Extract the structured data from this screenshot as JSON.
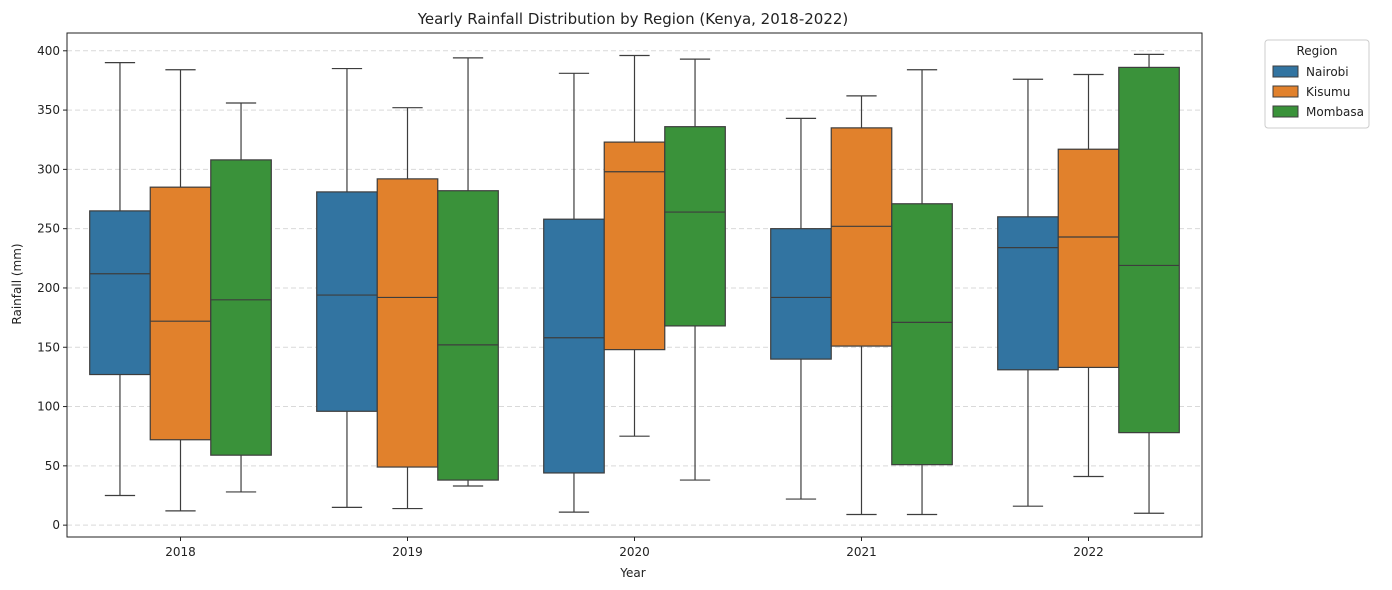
{
  "chart_data": {
    "type": "box",
    "title": "Yearly Rainfall Distribution by Region (Kenya, 2018-2022)",
    "xlabel": "Year",
    "ylabel": "Rainfall (mm)",
    "categories": [
      "2018",
      "2019",
      "2020",
      "2021",
      "2022"
    ],
    "ylim": [
      -10,
      415
    ],
    "yticks": [
      0,
      50,
      100,
      150,
      200,
      250,
      300,
      350,
      400
    ],
    "grid": true,
    "legend": {
      "title": "Region",
      "position": "outside-top-right"
    },
    "series": [
      {
        "name": "Nairobi",
        "color": "#3274a1",
        "boxes": [
          {
            "min": 25,
            "q1": 127,
            "median": 212,
            "q3": 265,
            "max": 390
          },
          {
            "min": 15,
            "q1": 96,
            "median": 194,
            "q3": 281,
            "max": 385
          },
          {
            "min": 11,
            "q1": 44,
            "median": 158,
            "q3": 258,
            "max": 381
          },
          {
            "min": 22,
            "q1": 140,
            "median": 192,
            "q3": 250,
            "max": 343
          },
          {
            "min": 16,
            "q1": 131,
            "median": 234,
            "q3": 260,
            "max": 376
          }
        ]
      },
      {
        "name": "Kisumu",
        "color": "#e1812c",
        "boxes": [
          {
            "min": 12,
            "q1": 72,
            "median": 172,
            "q3": 285,
            "max": 384
          },
          {
            "min": 14,
            "q1": 49,
            "median": 192,
            "q3": 292,
            "max": 352
          },
          {
            "min": 75,
            "q1": 148,
            "median": 298,
            "q3": 323,
            "max": 396
          },
          {
            "min": 9,
            "q1": 151,
            "median": 252,
            "q3": 335,
            "max": 362
          },
          {
            "min": 41,
            "q1": 133,
            "median": 243,
            "q3": 317,
            "max": 380
          }
        ]
      },
      {
        "name": "Mombasa",
        "color": "#3a923a",
        "boxes": [
          {
            "min": 28,
            "q1": 59,
            "median": 190,
            "q3": 308,
            "max": 356
          },
          {
            "min": 33,
            "q1": 38,
            "median": 152,
            "q3": 282,
            "max": 394
          },
          {
            "min": 38,
            "q1": 168,
            "median": 264,
            "q3": 336,
            "max": 393
          },
          {
            "min": 9,
            "q1": 51,
            "median": 171,
            "q3": 271,
            "max": 384
          },
          {
            "min": 10,
            "q1": 78,
            "median": 219,
            "q3": 386,
            "max": 397
          }
        ]
      }
    ]
  }
}
